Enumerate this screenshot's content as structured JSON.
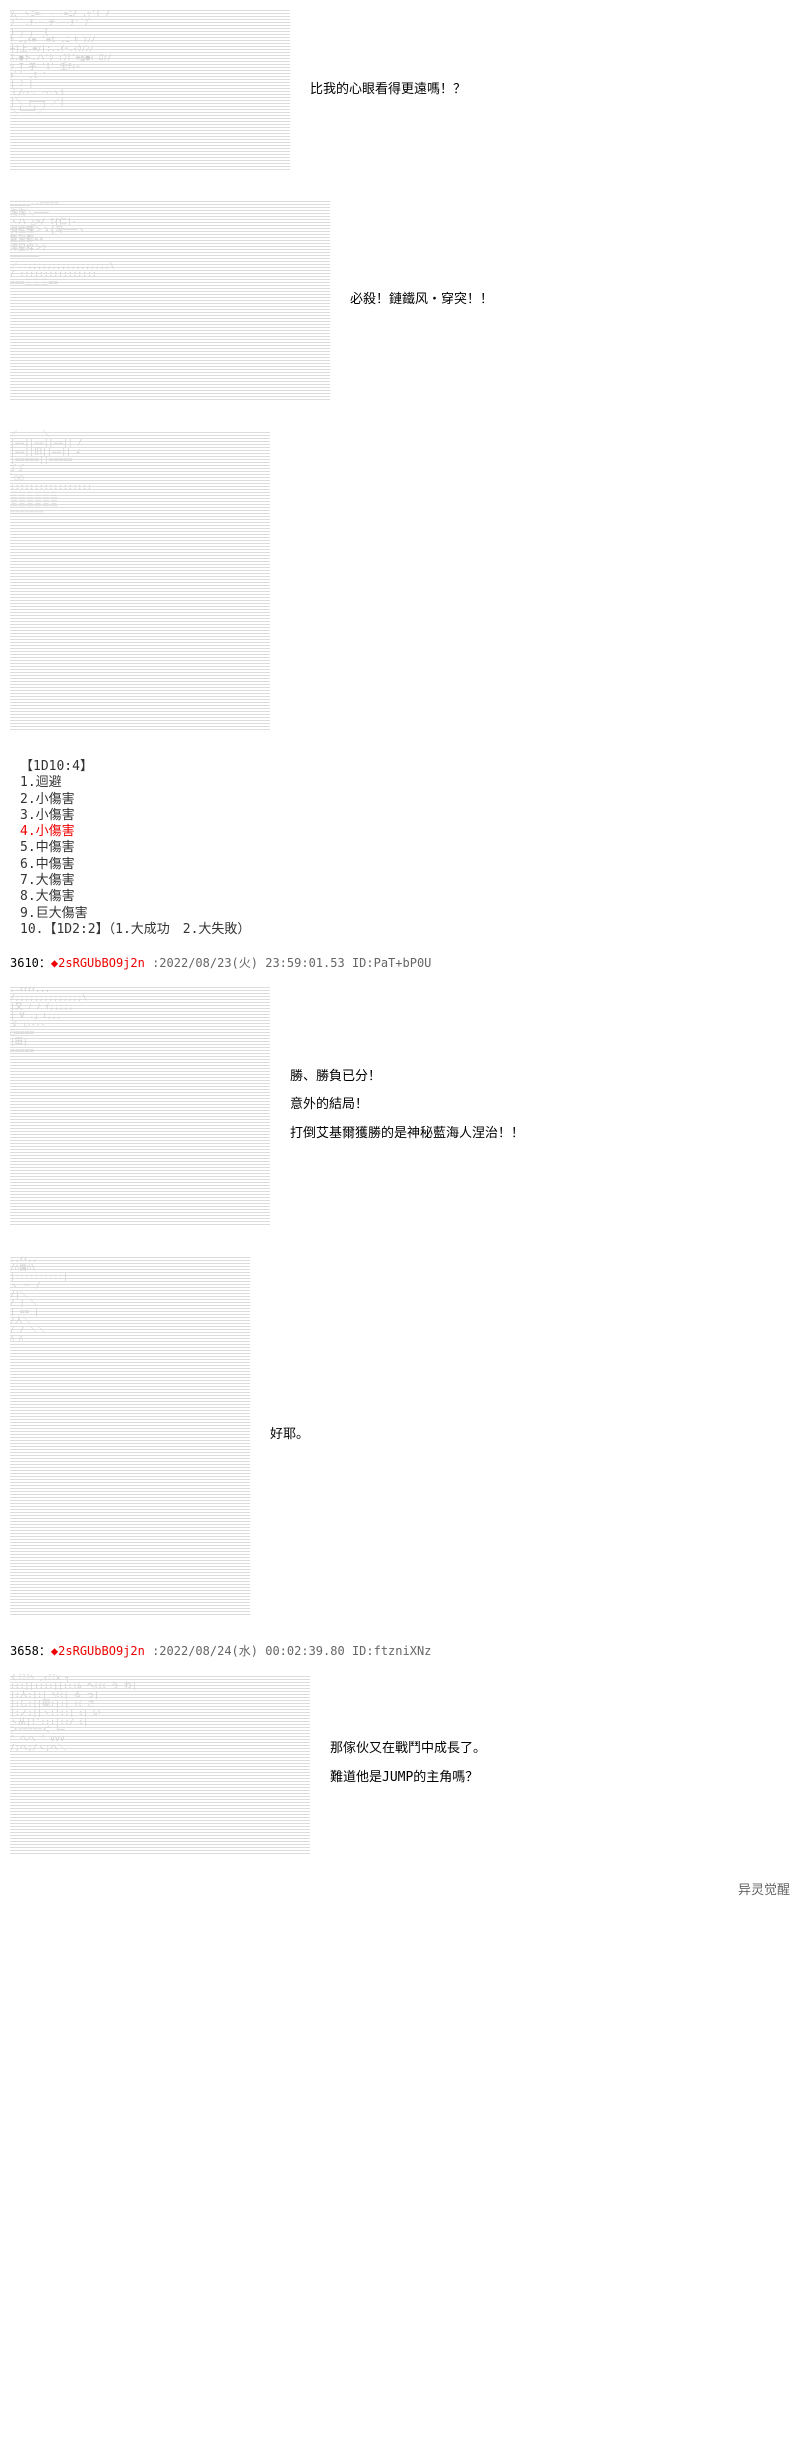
{
  "panels": [
    {
      "dialog": "比我的心眼看得更遠嗎！？"
    },
    {
      "dialog": "必殺！鏈鐵风・穿突！！"
    },
    {
      "dialog": ""
    },
    {
      "dialog_lines": [
        "勝、勝負已分！",
        "意外的結局！",
        "打倒艾基爾獲勝的是神秘藍海人涅治！！"
      ]
    },
    {
      "dialog": "好耶。"
    },
    {
      "dialog_lines": [
        "那傢伙又在戰鬥中成長了。",
        "難道他是JUMP的主角嗎？"
      ]
    }
  ],
  "dice": {
    "header": "【1D10:4】",
    "items": [
      "1.迴避",
      "2.小傷害",
      "3.小傷害",
      "4.小傷害",
      "5.中傷害",
      "6.中傷害",
      "7.大傷害",
      "8.大傷害",
      "9.巨大傷害",
      "10.【1D2:2】（1.大成功　2.大失敗）"
    ],
    "highlight_index": 3
  },
  "posts": [
    {
      "num": "3610",
      "trip": "◆2sRGUbBO9j2n",
      "date": ":2022/08/23(火) 23:59:01.53",
      "id": "ID:PaT+bP0U",
      "trip_color": "red"
    },
    {
      "num": "3658",
      "trip": "◆2sRGUbBO9j2n",
      "date": ":2022/08/24(水) 00:02:39.80",
      "id": "ID:ftzniXNz",
      "trip_color": "red"
    }
  ],
  "footer": "异灵觉醒"
}
